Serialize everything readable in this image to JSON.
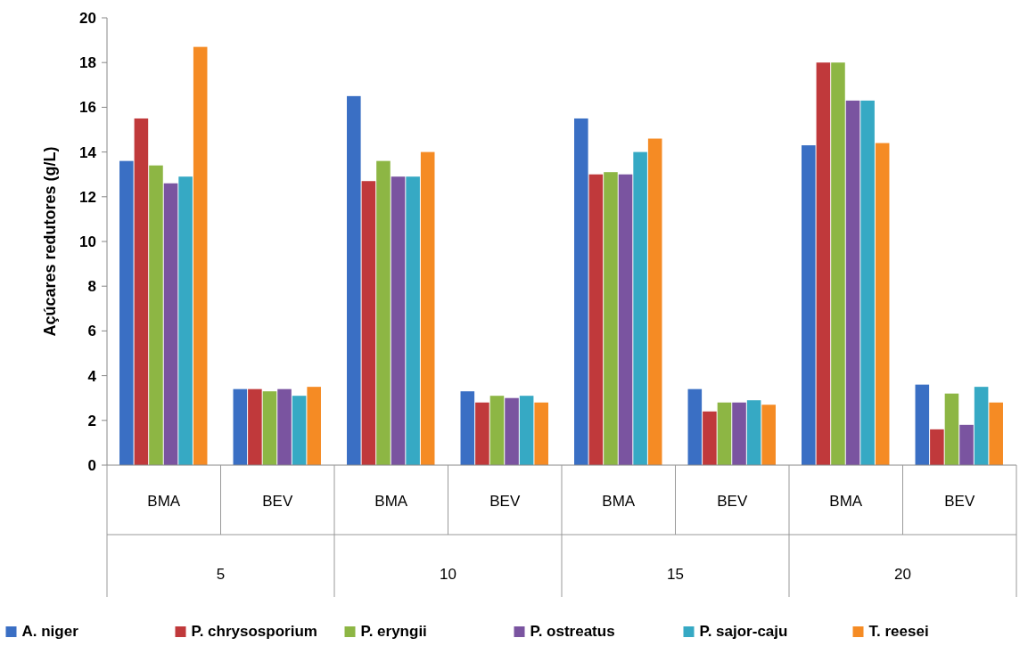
{
  "chart_data": {
    "type": "bar",
    "ylabel": "Açúcares redutores (g/L)",
    "categories": [
      "BMA",
      "BEV",
      "BMA",
      "BEV",
      "BMA",
      "BEV",
      "BMA",
      "BEV"
    ],
    "annotations": [
      "5",
      "10",
      "15",
      "20"
    ],
    "ylim": [
      0,
      20
    ],
    "yticks": [
      0,
      2,
      4,
      6,
      8,
      10,
      12,
      14,
      16,
      18,
      20
    ],
    "legend": "bottom",
    "series": [
      {
        "name": "A. niger",
        "color": "#3a6fc4",
        "values": [
          13.6,
          3.4,
          16.5,
          3.3,
          15.5,
          3.4,
          14.3,
          3.6
        ]
      },
      {
        "name": "P.  chrysosporium",
        "color": "#c0393b",
        "values": [
          15.5,
          3.4,
          12.7,
          2.8,
          13.0,
          2.4,
          18.0,
          1.6
        ]
      },
      {
        "name": "P.  eryngii",
        "color": "#8db644",
        "values": [
          13.4,
          3.3,
          13.6,
          3.1,
          13.1,
          2.8,
          18.0,
          3.2
        ]
      },
      {
        "name": "P.  ostreatus",
        "color": "#7a54a0",
        "values": [
          12.6,
          3.4,
          12.9,
          3.0,
          13.0,
          2.8,
          16.3,
          1.8
        ]
      },
      {
        "name": "P.  sajor-caju",
        "color": "#36a9c4",
        "values": [
          12.9,
          3.1,
          12.9,
          3.1,
          14.0,
          2.9,
          16.3,
          3.5
        ]
      },
      {
        "name": "T. reesei",
        "color": "#f58b24",
        "values": [
          18.7,
          3.5,
          14.0,
          2.8,
          14.6,
          2.7,
          14.4,
          2.8
        ]
      }
    ]
  }
}
